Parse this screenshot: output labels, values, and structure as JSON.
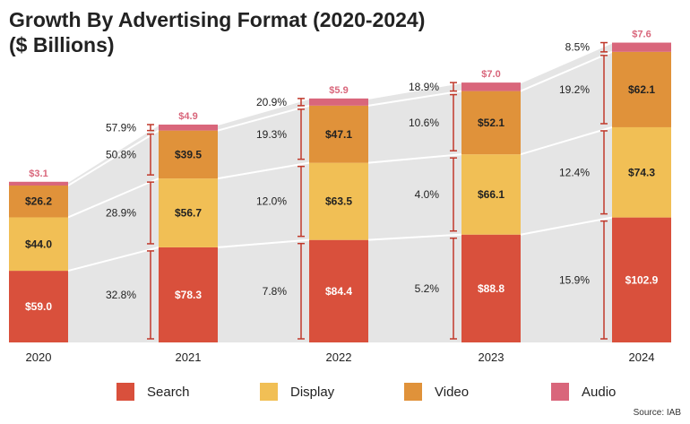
{
  "title_line1": "Growth By Advertising Format (2020-2024)",
  "title_line2": "($ Billions)",
  "source": "Source: IAB",
  "colors": {
    "Search": "#d9503c",
    "Display": "#f1bf55",
    "Video": "#e0923a",
    "Audio": "#d9667b",
    "band": "#e5e5e5",
    "bracket": "#c0392b",
    "total": "#d9667b"
  },
  "chart_data": {
    "type": "bar",
    "stacked": true,
    "title": "Growth By Advertising Format (2020-2024) ($ Billions)",
    "categories": [
      "2020",
      "2021",
      "2022",
      "2023",
      "2024"
    ],
    "series": [
      {
        "name": "Search",
        "values": [
          59.0,
          78.3,
          84.4,
          88.8,
          102.9
        ],
        "labels": [
          "$59.0",
          "$78.3",
          "$84.4",
          "$88.8",
          "$102.9"
        ]
      },
      {
        "name": "Display",
        "values": [
          44.0,
          56.7,
          63.5,
          66.1,
          74.3
        ],
        "labels": [
          "$44.0",
          "$56.7",
          "$63.5",
          "$66.1",
          "$74.3"
        ]
      },
      {
        "name": "Video",
        "values": [
          26.2,
          39.5,
          47.1,
          52.1,
          62.1
        ],
        "labels": [
          "$26.2",
          "$39.5",
          "$47.1",
          "$52.1",
          "$62.1"
        ]
      },
      {
        "name": "Audio",
        "values": [
          3.1,
          4.9,
          5.9,
          7.0,
          7.6
        ],
        "labels": [
          "$3.1",
          "$4.9",
          "$5.9",
          "$7.0",
          "$7.6"
        ]
      }
    ],
    "growth_labels": [
      {
        "Search": "32.8%",
        "Display": "28.9%",
        "Video": "50.8%",
        "Audio": "57.9%"
      },
      {
        "Search": "7.8%",
        "Display": "12.0%",
        "Video": "19.3%",
        "Audio": "20.9%"
      },
      {
        "Search": "5.2%",
        "Display": "4.0%",
        "Video": "10.6%",
        "Audio": "18.9%"
      },
      {
        "Search": "15.9%",
        "Display": "12.4%",
        "Video": "19.2%",
        "Audio": "8.5%"
      }
    ],
    "legend": [
      "Search",
      "Display",
      "Video",
      "Audio"
    ],
    "legend_position": "bottom",
    "grid": false
  }
}
